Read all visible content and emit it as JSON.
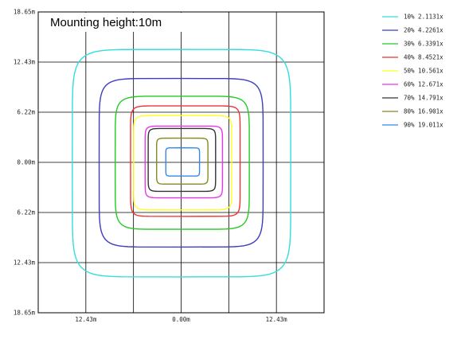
{
  "chart_data": {
    "type": "contour",
    "title": "Mounting height:10m",
    "xlim": [
      -18.65,
      18.65
    ],
    "ylim": [
      -18.65,
      18.65
    ],
    "grid": true,
    "x_tick_values": [
      -12.43,
      0.0,
      12.43
    ],
    "x_tick_labels": [
      "12.43m",
      "0.00m",
      "12.43m"
    ],
    "y_tick_values": [
      18.65,
      12.43,
      6.22,
      0.0,
      -6.22,
      -12.43,
      -18.65
    ],
    "y_tick_labels": [
      "18.65m",
      "12.43m",
      "6.22m",
      "0.00m",
      "6.22m",
      "12.43m",
      "18.65m"
    ],
    "legend_position": "right",
    "series": [
      {
        "name": "10% 2.1131x",
        "color": "#33dddd",
        "extent": {
          "left": -14.2,
          "right": 14.3,
          "top": 14.0,
          "bottom": -14.2
        }
      },
      {
        "name": "20% 4.2261x",
        "color": "#3d3dc0",
        "extent": {
          "left": -10.7,
          "right": 10.7,
          "top": 10.4,
          "bottom": -10.5
        }
      },
      {
        "name": "30% 6.3391x",
        "color": "#22cc22",
        "extent": {
          "left": -8.6,
          "right": 8.9,
          "top": 8.2,
          "bottom": -8.3
        }
      },
      {
        "name": "40% 8.4521x",
        "color": "#ee3333",
        "extent": {
          "left": -6.6,
          "right": 7.7,
          "top": 7.0,
          "bottom": -6.7
        }
      },
      {
        "name": "50% 10.561x",
        "color": "#ffff22",
        "extent": {
          "left": -6.2,
          "right": 6.6,
          "top": 5.8,
          "bottom": -5.9
        }
      },
      {
        "name": "60% 12.671x",
        "color": "#ee33ee",
        "extent": {
          "left": -4.7,
          "right": 5.4,
          "top": 4.5,
          "bottom": -4.4
        }
      },
      {
        "name": "70% 14.791x",
        "color": "#333333",
        "extent": {
          "left": -4.3,
          "right": 4.5,
          "top": 4.2,
          "bottom": -3.6
        }
      },
      {
        "name": "80% 16.901x",
        "color": "#888822",
        "extent": {
          "left": -3.2,
          "right": 3.5,
          "top": 3.0,
          "bottom": -2.7
        }
      },
      {
        "name": "90% 19.011x",
        "color": "#3388ee",
        "extent": {
          "left": -2.0,
          "right": 2.4,
          "top": 1.8,
          "bottom": -1.7
        }
      }
    ]
  }
}
